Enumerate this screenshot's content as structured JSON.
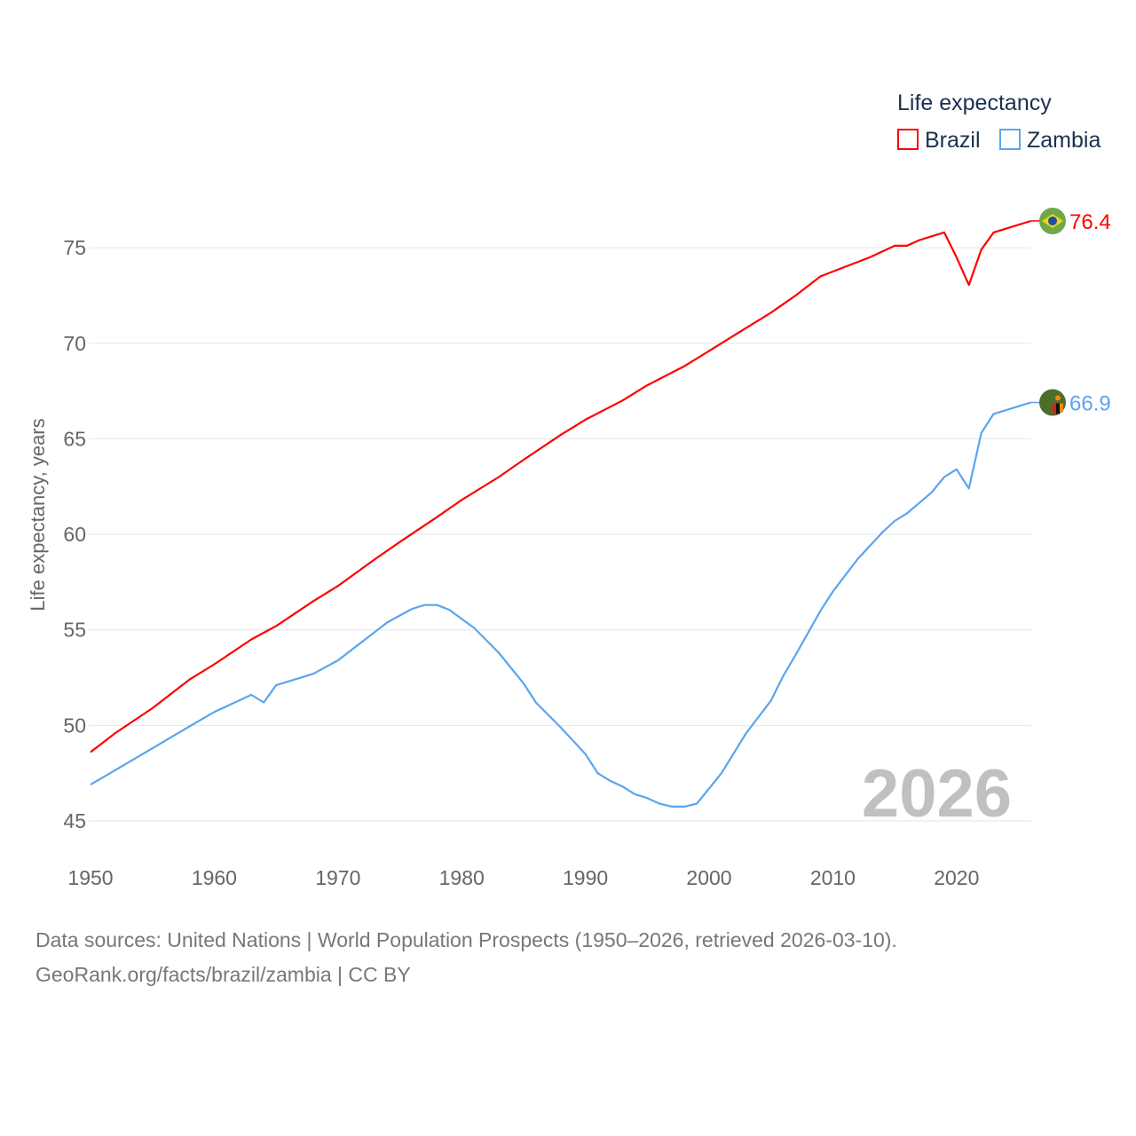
{
  "chart_data": {
    "type": "line",
    "title": "",
    "ylabel": "Life expectancy, years",
    "xlabel": "",
    "ylim": [
      45,
      78
    ],
    "xlim": [
      1950,
      2026
    ],
    "grid": true,
    "legend": {
      "title": "Life expectancy",
      "placement": "top-right"
    },
    "x_ticks": [
      "1950",
      "1960",
      "1970",
      "1980",
      "1990",
      "2000",
      "2010",
      "2020"
    ],
    "y_ticks": [
      "45",
      "50",
      "55",
      "60",
      "65",
      "70",
      "75"
    ],
    "year_watermark": "2026",
    "series": [
      {
        "name": "Brazil",
        "color": "#ff0000",
        "end_label": "76.4",
        "flag": "brazil-flag",
        "points": [
          [
            1950,
            48.6
          ],
          [
            1952,
            49.6
          ],
          [
            1955,
            50.9
          ],
          [
            1958,
            52.4
          ],
          [
            1960,
            53.2
          ],
          [
            1963,
            54.5
          ],
          [
            1965,
            55.2
          ],
          [
            1968,
            56.5
          ],
          [
            1970,
            57.3
          ],
          [
            1973,
            58.7
          ],
          [
            1975,
            59.6
          ],
          [
            1978,
            60.9
          ],
          [
            1980,
            61.8
          ],
          [
            1983,
            63.0
          ],
          [
            1985,
            63.9
          ],
          [
            1988,
            65.2
          ],
          [
            1990,
            66.0
          ],
          [
            1993,
            67.0
          ],
          [
            1995,
            67.8
          ],
          [
            1998,
            68.8
          ],
          [
            2000,
            69.6
          ],
          [
            2002,
            70.4
          ],
          [
            2005,
            71.6
          ],
          [
            2007,
            72.5
          ],
          [
            2009,
            73.5
          ],
          [
            2011,
            74.0
          ],
          [
            2013,
            74.5
          ],
          [
            2015,
            75.1
          ],
          [
            2016,
            75.1
          ],
          [
            2017,
            75.4
          ],
          [
            2019,
            75.8
          ],
          [
            2020,
            74.5
          ],
          [
            2021,
            73.05
          ],
          [
            2022,
            74.9
          ],
          [
            2023,
            75.8
          ],
          [
            2026,
            76.4
          ]
        ]
      },
      {
        "name": "Zambia",
        "color": "#5aa5ee",
        "end_label": "66.9",
        "flag": "zambia-flag",
        "points": [
          [
            1950,
            46.9
          ],
          [
            1955,
            48.8
          ],
          [
            1958,
            49.95
          ],
          [
            1960,
            50.7
          ],
          [
            1963,
            51.6
          ],
          [
            1964,
            51.2
          ],
          [
            1965,
            52.1
          ],
          [
            1968,
            52.7
          ],
          [
            1970,
            53.4
          ],
          [
            1974,
            55.4
          ],
          [
            1976,
            56.1
          ],
          [
            1977,
            56.3
          ],
          [
            1978,
            56.3
          ],
          [
            1979,
            56.05
          ],
          [
            1981,
            55.1
          ],
          [
            1983,
            53.8
          ],
          [
            1985,
            52.2
          ],
          [
            1986,
            51.2
          ],
          [
            1988,
            49.9
          ],
          [
            1990,
            48.5
          ],
          [
            1991,
            47.5
          ],
          [
            1992,
            47.1
          ],
          [
            1993,
            46.8
          ],
          [
            1994,
            46.4
          ],
          [
            1995,
            46.2
          ],
          [
            1996,
            45.9
          ],
          [
            1997,
            45.75
          ],
          [
            1998,
            45.75
          ],
          [
            1999,
            45.9
          ],
          [
            2000,
            46.7
          ],
          [
            2001,
            47.5
          ],
          [
            2003,
            49.6
          ],
          [
            2005,
            51.3
          ],
          [
            2006,
            52.6
          ],
          [
            2007,
            53.7
          ],
          [
            2009,
            56.0
          ],
          [
            2010,
            57.0
          ],
          [
            2012,
            58.7
          ],
          [
            2014,
            60.1
          ],
          [
            2015,
            60.7
          ],
          [
            2016,
            61.1
          ],
          [
            2018,
            62.2
          ],
          [
            2019,
            63.0
          ],
          [
            2020,
            63.4
          ],
          [
            2021,
            62.4
          ],
          [
            2022,
            65.3
          ],
          [
            2023,
            66.3
          ],
          [
            2026,
            66.9
          ]
        ]
      }
    ]
  },
  "footer": {
    "line1": "Data sources: United Nations | World Population Prospects (1950–2026, retrieved 2026-03-10).",
    "line2": "GeoRank.org/facts/brazil/zambia | CC BY"
  }
}
